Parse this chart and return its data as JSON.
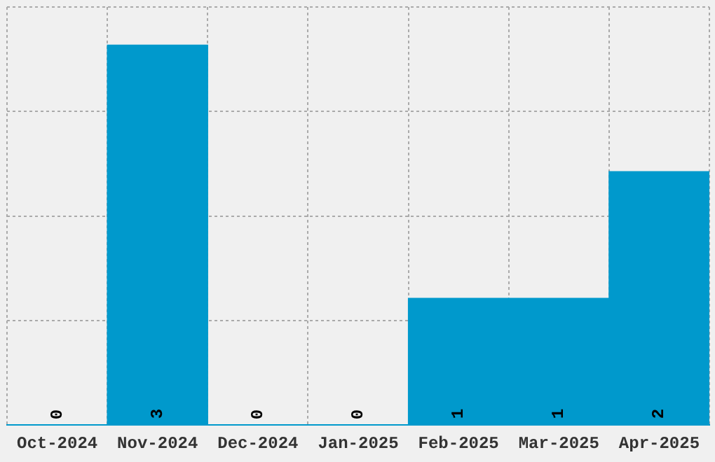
{
  "chart_data": {
    "type": "bar",
    "categories": [
      "Oct-2024",
      "Nov-2024",
      "Dec-2024",
      "Jan-2025",
      "Feb-2025",
      "Mar-2025",
      "Apr-2025"
    ],
    "values": [
      0,
      3,
      0,
      0,
      1,
      1,
      2
    ],
    "color": "#0099cc",
    "data_labels": true,
    "grid": true,
    "tick_labels": "x",
    "ylim": [
      0,
      3.3
    ],
    "yticks": [
      {
        "value": 0,
        "label": null
      },
      {
        "value": 0.825,
        "label": null
      },
      {
        "value": 1.65,
        "label": null
      },
      {
        "value": 2.475,
        "label": null
      },
      {
        "value": 3.3,
        "label": null
      }
    ]
  }
}
